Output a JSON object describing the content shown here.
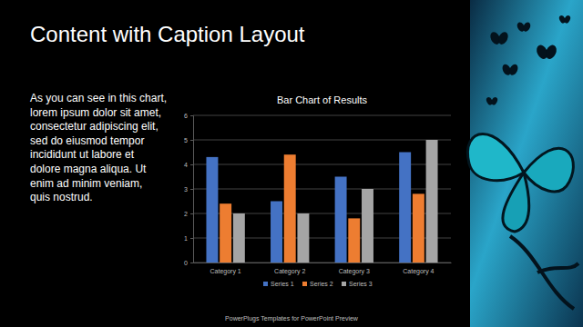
{
  "slide": {
    "title": "Content with Caption Layout",
    "caption": [
      "As you can see in this chart,",
      "lorem ipsum dolor sit amet,",
      "consectetur adipiscing elit,",
      "sed do eiusmod tempor",
      "incididunt ut labore et",
      "dolore magna aliqua. Ut",
      "enim ad minim veniam,",
      "quis nostrud."
    ],
    "footer": "PowerPlugs Templates for PowerPoint Preview"
  },
  "chart_data": {
    "type": "bar",
    "title": "Bar Chart of Results",
    "categories": [
      "Category 1",
      "Category 2",
      "Category 3",
      "Category 4"
    ],
    "series": [
      {
        "name": "Series 1",
        "color": "#4472c4",
        "values": [
          4.3,
          2.5,
          3.5,
          4.5
        ]
      },
      {
        "name": "Series 2",
        "color": "#ed7d31",
        "values": [
          2.4,
          4.4,
          1.8,
          2.8
        ]
      },
      {
        "name": "Series 3",
        "color": "#a5a5a5",
        "values": [
          2,
          2,
          3,
          5
        ]
      }
    ],
    "ylim": [
      0,
      6
    ],
    "yticks": [
      0,
      1,
      2,
      3,
      4,
      5,
      6
    ],
    "grid": true,
    "legend": "bottom"
  }
}
